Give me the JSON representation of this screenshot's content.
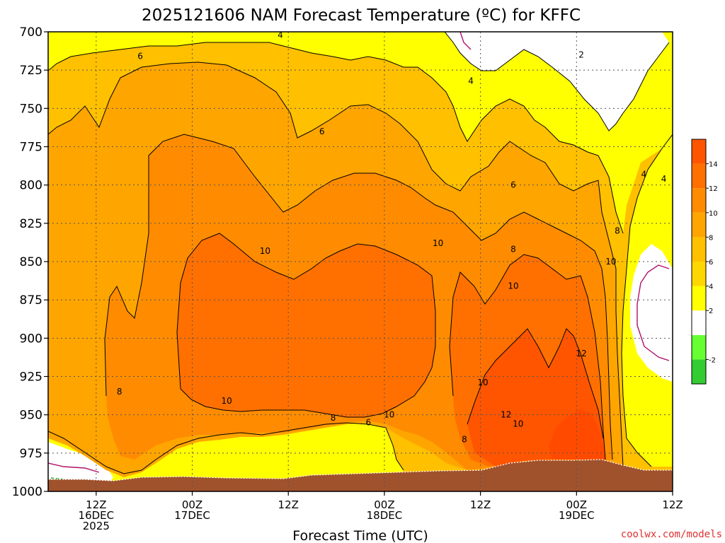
{
  "chart_data": {
    "type": "heatmap",
    "title": "2025121606 NAM Forecast Temperature (ºC) for KFFC",
    "xlabel": "Forecast Time (UTC)",
    "ylabel": "",
    "y_axis": {
      "ticks": [
        700,
        725,
        750,
        775,
        800,
        825,
        850,
        875,
        900,
        925,
        950,
        975,
        1000
      ],
      "range": [
        700,
        1000
      ],
      "inverted": true
    },
    "x_axis": {
      "range_hours": [
        6,
        84
      ],
      "ticks": [
        {
          "hour": 12,
          "lines": [
            "12Z",
            "16DEC",
            "2025"
          ]
        },
        {
          "hour": 24,
          "lines": [
            "00Z",
            "17DEC"
          ]
        },
        {
          "hour": 36,
          "lines": [
            "12Z"
          ]
        },
        {
          "hour": 48,
          "lines": [
            "00Z",
            "18DEC"
          ]
        },
        {
          "hour": 60,
          "lines": [
            "12Z"
          ]
        },
        {
          "hour": 72,
          "lines": [
            "00Z",
            "19DEC"
          ]
        },
        {
          "hour": 84,
          "lines": [
            "12Z"
          ]
        }
      ]
    },
    "grid": true,
    "colorbar": {
      "levels": [
        -4,
        -2,
        0,
        2,
        4,
        6,
        8,
        10,
        12,
        14,
        16
      ],
      "labels": [
        "-2",
        "2",
        "4",
        "6",
        "8",
        "10",
        "12",
        "14"
      ],
      "colors": [
        "#33cc33",
        "#66ff33",
        "#ffffff",
        "#ffff00",
        "#ffd700",
        "#ffc000",
        "#ffa500",
        "#ff8c00",
        "#ff7000",
        "#ff5500"
      ]
    },
    "contour_labels": [
      {
        "value": "4",
        "h": 35.0,
        "p": 702
      },
      {
        "value": "6",
        "h": 17.5,
        "p": 716
      },
      {
        "value": "4",
        "h": 58.8,
        "p": 732
      },
      {
        "value": "2",
        "h": 72.6,
        "p": 715
      },
      {
        "value": "6",
        "h": 40.2,
        "p": 765
      },
      {
        "value": "6",
        "h": 64.1,
        "p": 800
      },
      {
        "value": "4",
        "h": 80.4,
        "p": 793
      },
      {
        "value": "4",
        "h": 82.9,
        "p": 796
      },
      {
        "value": "8",
        "h": 77.1,
        "p": 830
      },
      {
        "value": "8",
        "h": 64.1,
        "p": 842
      },
      {
        "value": "10",
        "h": 33.1,
        "p": 843
      },
      {
        "value": "10",
        "h": 54.7,
        "p": 838
      },
      {
        "value": "10",
        "h": 76.3,
        "p": 850
      },
      {
        "value": "10",
        "h": 64.1,
        "p": 866
      },
      {
        "value": "12",
        "h": 72.6,
        "p": 910
      },
      {
        "value": "10",
        "h": 60.3,
        "p": 929
      },
      {
        "value": "8",
        "h": 14.9,
        "p": 935
      },
      {
        "value": "10",
        "h": 28.3,
        "p": 941
      },
      {
        "value": "8",
        "h": 41.6,
        "p": 952
      },
      {
        "value": "6",
        "h": 46.0,
        "p": 955
      },
      {
        "value": "10",
        "h": 48.6,
        "p": 950
      },
      {
        "value": "12",
        "h": 63.2,
        "p": 950
      },
      {
        "value": "10",
        "h": 64.7,
        "p": 956
      },
      {
        "value": "8",
        "h": 58.0,
        "p": 966
      }
    ],
    "credit": "coolwx.com/models"
  }
}
